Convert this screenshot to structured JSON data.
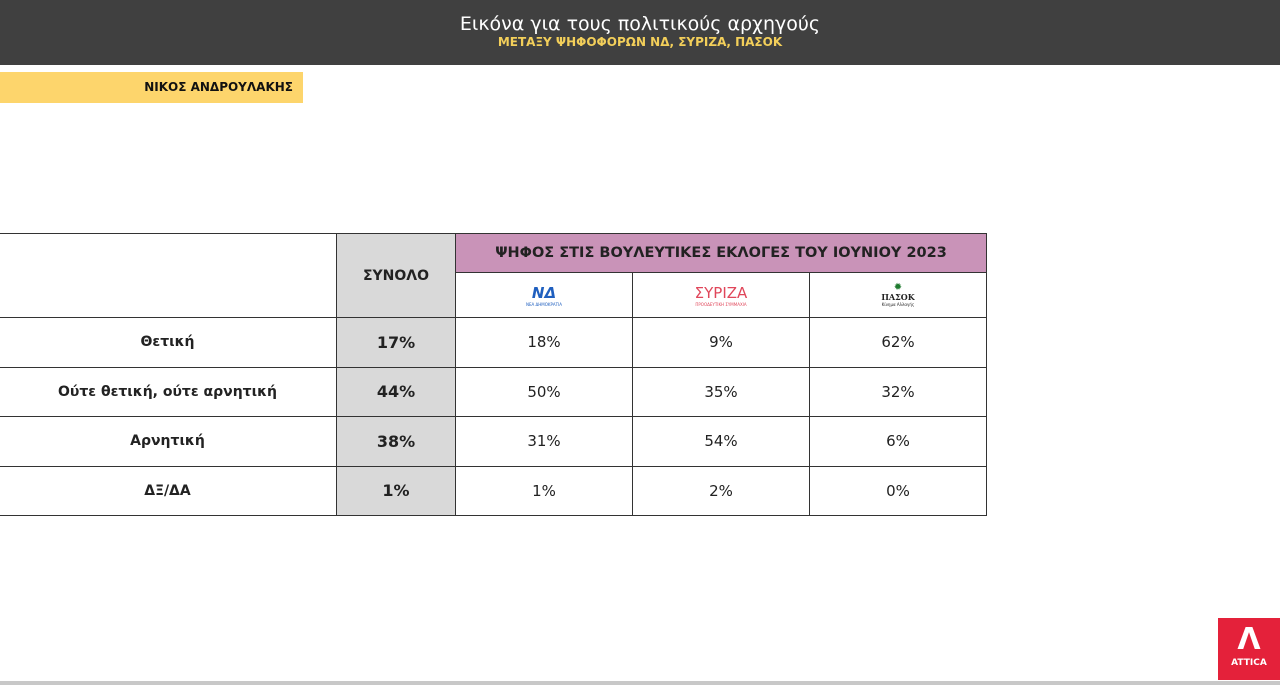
{
  "header": {
    "title": "Εικόνα για τους πολιτικούς αρχηγούς",
    "subtitle": "ΜΕΤΑΞΥ ΨΗΦΟΦΟΡΩΝ ΝΔ, ΣΥΡΙΖΑ, ΠΑΣΟΚ"
  },
  "leader": "ΝΙΚΟΣ ΑΝΔΡΟΥΛΑΚΗΣ",
  "table": {
    "total_header": "ΣΥΝΟΛΟ",
    "group_header": "ΨΗΦΟΣ ΣΤΙΣ ΒΟΥΛΕΥΤΙΚΕΣ ΕΚΛΟΓΕΣ ΤΟΥ ΙΟΥΝΙΟΥ 2023",
    "parties": [
      {
        "logo": "ΝΔ",
        "sub": "ΝΕΑ ΔΗΜΟΚΡΑΤΙΑ",
        "color": "#1f5fbf"
      },
      {
        "logo": "ΣΥΡΙΖΑ",
        "sub": "ΠΡΟΟΔΕΥΤΙΚΗ ΣΥΜΜΑΧΙΑ",
        "color": "#e0465a"
      },
      {
        "logo": "ΠΑΣΟΚ",
        "sub": "Κίνημα Αλλαγής",
        "color": "#1e7a2e"
      }
    ],
    "rows": [
      {
        "label": "Θετική",
        "total": "17%",
        "values": [
          "18%",
          "9%",
          "62%"
        ]
      },
      {
        "label": "Ούτε θετική, ούτε αρνητική",
        "total": "44%",
        "values": [
          "50%",
          "35%",
          "32%"
        ]
      },
      {
        "label": "Αρνητική",
        "total": "38%",
        "values": [
          "31%",
          "54%",
          "6%"
        ]
      },
      {
        "label": "ΔΞ/ΔΑ",
        "total": "1%",
        "values": [
          "1%",
          "2%",
          "0%"
        ]
      }
    ]
  },
  "brand": "ATTICA"
}
